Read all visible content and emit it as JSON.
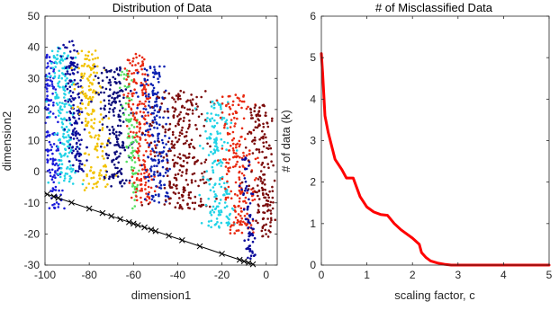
{
  "chart_data": [
    {
      "type": "scatter",
      "title": "Distribution of Data",
      "xlabel": "dimension1",
      "ylabel": "dimension2",
      "xlim": [
        -100,
        5
      ],
      "ylim": [
        -30,
        50
      ],
      "xticks": [
        -100,
        -80,
        -60,
        -40,
        -20,
        0
      ],
      "yticks": [
        -30,
        -20,
        -10,
        0,
        10,
        20,
        30,
        40,
        50
      ],
      "xtick_labels": [
        "-100",
        "-80",
        "-60",
        "-40",
        "-20",
        "0"
      ],
      "ytick_labels": [
        "-30",
        "-20",
        "-10",
        "0",
        "10",
        "20",
        "30",
        "40",
        "50"
      ],
      "grid": false,
      "tilt": 0.055,
      "clusters": [
        {
          "color": "#1a1ad9",
          "cx": -97,
          "spread": 1.8,
          "ymin": -12,
          "ymax": 38,
          "n": 170
        },
        {
          "color": "#22d3e6",
          "cx": -91,
          "spread": 2.5,
          "ymin": -4,
          "ymax": 40,
          "n": 190
        },
        {
          "color": "#0a0a9a",
          "cx": -86,
          "spread": 2.0,
          "ymin": 0,
          "ymax": 42,
          "n": 160
        },
        {
          "color": "#f2c200",
          "cx": -78,
          "spread": 3.0,
          "ymin": -6,
          "ymax": 39,
          "n": 180
        },
        {
          "color": "#0a0a7a",
          "cx": -68,
          "spread": 3.5,
          "ymin": -5,
          "ymax": 34,
          "n": 190
        },
        {
          "color": "#55e060",
          "cx": -61,
          "spread": 1.4,
          "ymin": -12,
          "ymax": 33,
          "n": 90
        },
        {
          "color": "#e8280f",
          "cx": -57,
          "spread": 3.0,
          "ymin": -10,
          "ymax": 38,
          "n": 200
        },
        {
          "color": "#0a20b0",
          "cx": -50,
          "spread": 2.8,
          "ymin": -10,
          "ymax": 34,
          "n": 200
        },
        {
          "color": "#7a0a0a",
          "cx": -38,
          "spread": 6.0,
          "ymin": -12,
          "ymax": 26,
          "n": 260
        },
        {
          "color": "#22d3e6",
          "cx": -23,
          "spread": 3.5,
          "ymin": -18,
          "ymax": 23,
          "n": 170
        },
        {
          "color": "#e8280f",
          "cx": -14,
          "spread": 4.0,
          "ymin": -20,
          "ymax": 25,
          "n": 200
        },
        {
          "color": "#7a0a0a",
          "cx": -3,
          "spread": 3.0,
          "ymin": -22,
          "ymax": 22,
          "n": 170
        },
        {
          "color": "#0a0a9a",
          "cx": -10,
          "spread": 1.0,
          "ymin": -28,
          "ymax": 6,
          "n": 70
        }
      ],
      "boundary_line": {
        "x": [
          -100,
          -5
        ],
        "y": [
          -7,
          -30
        ],
        "color": "#000000"
      },
      "markers": {
        "symbol": "x",
        "color": "#000000",
        "x": [
          -99,
          -96,
          -94,
          -88,
          -80,
          -74,
          -70,
          -66,
          -62,
          -60,
          -58,
          -55,
          -52,
          -50,
          -44,
          -38,
          -30,
          -20,
          -12,
          -10,
          -8,
          -6
        ]
      }
    },
    {
      "type": "line",
      "title": "# of Misclassified Data",
      "xlabel": "scaling factor, c",
      "ylabel": "# of data (k)",
      "xlim": [
        0,
        5
      ],
      "ylim": [
        0,
        6
      ],
      "xticks": [
        0,
        1,
        2,
        3,
        4,
        5
      ],
      "yticks": [
        0,
        1,
        2,
        3,
        4,
        5,
        6
      ],
      "xtick_labels": [
        "0",
        "1",
        "2",
        "3",
        "4",
        "5"
      ],
      "ytick_labels": [
        "0",
        "1",
        "2",
        "3",
        "4",
        "5",
        "6"
      ],
      "grid": false,
      "series": [
        {
          "color": "#ff0000",
          "x": [
            0,
            0.03,
            0.08,
            0.15,
            0.3,
            0.45,
            0.55,
            0.7,
            0.75,
            0.85,
            1.0,
            1.15,
            1.3,
            1.45,
            1.6,
            1.75,
            2.0,
            2.15,
            2.2,
            2.3,
            2.4,
            2.55,
            2.7,
            2.85,
            3.0,
            3.5,
            4.0,
            4.5,
            5.0
          ],
          "y": [
            5.1,
            4.6,
            3.6,
            3.2,
            2.55,
            2.3,
            2.1,
            2.1,
            1.95,
            1.65,
            1.4,
            1.28,
            1.22,
            1.2,
            1.0,
            0.85,
            0.65,
            0.5,
            0.3,
            0.18,
            0.1,
            0.05,
            0.02,
            0.0,
            0.0,
            0.0,
            0.0,
            0.0,
            0.0
          ]
        }
      ]
    }
  ]
}
